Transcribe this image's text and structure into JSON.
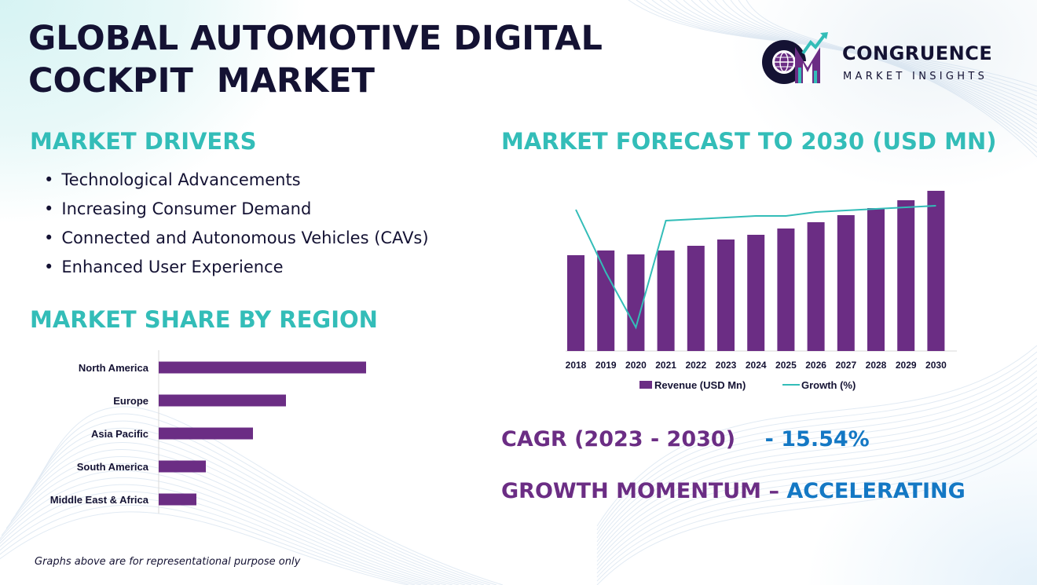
{
  "title_line1": "GLOBAL AUTOMOTIVE DIGITAL",
  "title_line2": "COCKPIT  MARKET",
  "logo": {
    "monogram": "CM",
    "brand": "CONGRUENCE",
    "sub": "MARKET INSIGHTS"
  },
  "drivers": {
    "heading": "MARKET DRIVERS",
    "items": [
      "Technological Advancements",
      "Increasing Consumer Demand",
      "Connected and Autonomous Vehicles (CAVs)",
      "Enhanced User Experience"
    ]
  },
  "region_heading": "MARKET SHARE BY REGION",
  "forecast_heading": "MARKET FORECAST TO 2030 (USD MN)",
  "cagr": {
    "label": "CAGR (2023 - 2030)",
    "value": "- 15.54%"
  },
  "momentum": {
    "label": "GROWTH MOMENTUM –",
    "value": "ACCELERATING"
  },
  "footnote": "Graphs above are for representational purpose only",
  "colors": {
    "teal": "#33bdb8",
    "purple": "#6b2d84",
    "navy": "#141233",
    "blue": "#1478c4"
  },
  "chart_data": [
    {
      "type": "bar",
      "orientation": "horizontal",
      "categories": [
        "North America",
        "Europe",
        "Asia Pacific",
        "South America",
        "Middle East & Africa"
      ],
      "values": [
        44,
        27,
        20,
        10,
        8
      ],
      "xlim": [
        0,
        50
      ],
      "color": "#6b2d84"
    },
    {
      "type": "bar",
      "categories": [
        "2018",
        "2019",
        "2020",
        "2021",
        "2022",
        "2023",
        "2024",
        "2025",
        "2026",
        "2027",
        "2028",
        "2029",
        "2030"
      ],
      "series": [
        {
          "name": "Revenue (USD Mn)",
          "type": "bar",
          "color": "#6b2d84",
          "values": [
            61,
            64,
            61.5,
            64,
            67,
            71,
            74,
            78,
            82,
            86.5,
            91,
            96,
            102
          ]
        },
        {
          "name": "Growth (%)",
          "type": "line",
          "color": "#33bdb8",
          "values": [
            90,
            50,
            15,
            83,
            84,
            85,
            86,
            86,
            88.5,
            89.5,
            90.5,
            91.5,
            92.5
          ]
        }
      ],
      "ylim": [
        0,
        102
      ],
      "legend": "bottom"
    }
  ]
}
